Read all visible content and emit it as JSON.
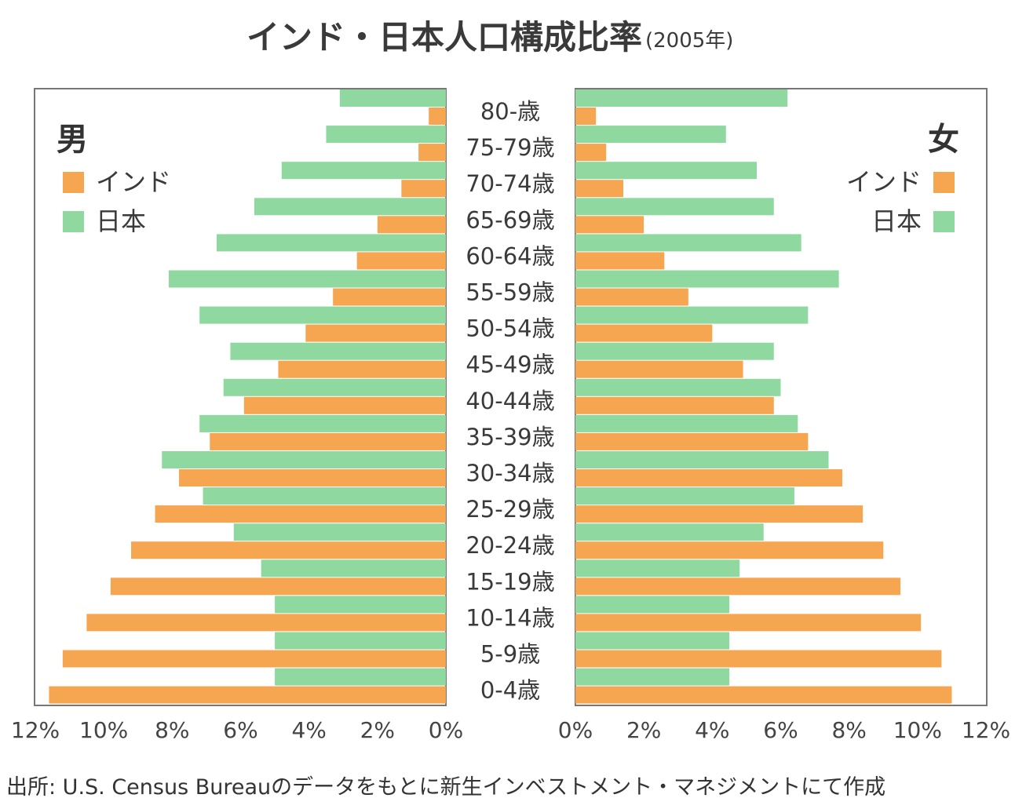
{
  "title": "インド・日本人口構成比率",
  "subtitle": "(2005年)",
  "colors": {
    "india": "#f6a551",
    "japan": "#8fd9a0",
    "frame": "#777777"
  },
  "legend": {
    "male_heading": "男",
    "female_heading": "女",
    "india_label": "インド",
    "japan_label": "日本"
  },
  "source": "出所: U.S. Census Bureauのデータをもとに新生インベストメント・マネジメントにて作成",
  "chart_data": {
    "type": "bar",
    "orientation": "horizontal",
    "layout": "population-pyramid",
    "units": "%",
    "xlim": [
      0,
      12
    ],
    "x_ticks": [
      "0%",
      "2%",
      "4%",
      "6%",
      "8%",
      "10%",
      "12%"
    ],
    "categories": [
      "80-歳",
      "75-79歳",
      "70-74歳",
      "65-69歳",
      "60-64歳",
      "55-59歳",
      "50-54歳",
      "45-49歳",
      "40-44歳",
      "35-39歳",
      "30-34歳",
      "25-29歳",
      "20-24歳",
      "15-19歳",
      "10-14歳",
      "5-9歳",
      "0-4歳"
    ],
    "male": {
      "heading": "男",
      "series": [
        {
          "name": "日本",
          "values": [
            3.1,
            3.5,
            4.8,
            5.6,
            6.7,
            8.1,
            7.2,
            6.3,
            6.5,
            7.2,
            8.3,
            7.1,
            6.2,
            5.4,
            5.0,
            5.0,
            5.0
          ]
        },
        {
          "name": "インド",
          "values": [
            0.5,
            0.8,
            1.3,
            2.0,
            2.6,
            3.3,
            4.1,
            4.9,
            5.9,
            6.9,
            7.8,
            8.5,
            9.2,
            9.8,
            10.5,
            11.2,
            11.6
          ]
        }
      ]
    },
    "female": {
      "heading": "女",
      "series": [
        {
          "name": "日本",
          "values": [
            6.2,
            4.4,
            5.3,
            5.8,
            6.6,
            7.7,
            6.8,
            5.8,
            6.0,
            6.5,
            7.4,
            6.4,
            5.5,
            4.8,
            4.5,
            4.5,
            4.5
          ]
        },
        {
          "name": "インド",
          "values": [
            0.6,
            0.9,
            1.4,
            2.0,
            2.6,
            3.3,
            4.0,
            4.9,
            5.8,
            6.8,
            7.8,
            8.4,
            9.0,
            9.5,
            10.1,
            10.7,
            11.0
          ]
        }
      ]
    }
  }
}
